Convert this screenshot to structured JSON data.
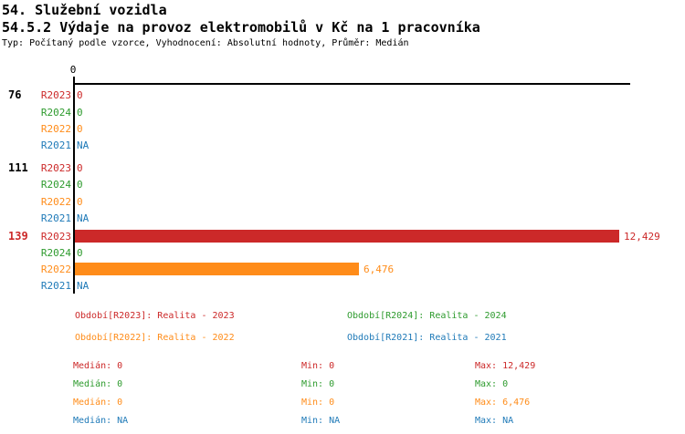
{
  "header": {
    "title_line1": "54. Služební vozidla",
    "title_line2": "54.5.2 Výdaje na provoz elektromobilů v Kč na 1 pracovníka",
    "meta": "Typ: Počítaný podle vzorce, Vyhodnocení: Absolutní hodnoty, Průměr: Medián"
  },
  "palette": {
    "R2023": "#cc2929",
    "R2024": "#2e9b2e",
    "R2022": "#ff8c19",
    "R2021": "#1f7ab8",
    "axis": "#000000"
  },
  "chart_data": {
    "type": "bar",
    "orientation": "horizontal",
    "title": "54.5.2 Výdaje na provoz elektromobilů v Kč na 1 pracovníka",
    "xlim": [
      0,
      12429
    ],
    "axis_tick_label": "0",
    "categories": [
      "76",
      "111",
      "139"
    ],
    "series_order": [
      "R2023",
      "R2024",
      "R2022",
      "R2021"
    ],
    "groups": [
      {
        "label": "76",
        "label_color": "#000000",
        "rows": [
          {
            "series": "R2023",
            "value": 0,
            "value_label": "0",
            "color": "#cc2929"
          },
          {
            "series": "R2024",
            "value": 0,
            "value_label": "0",
            "color": "#2e9b2e"
          },
          {
            "series": "R2022",
            "value": 0,
            "value_label": "0",
            "color": "#ff8c19"
          },
          {
            "series": "R2021",
            "value": null,
            "value_label": "NA",
            "color": "#1f7ab8"
          }
        ]
      },
      {
        "label": "111",
        "label_color": "#000000",
        "rows": [
          {
            "series": "R2023",
            "value": 0,
            "value_label": "0",
            "color": "#cc2929"
          },
          {
            "series": "R2024",
            "value": 0,
            "value_label": "0",
            "color": "#2e9b2e"
          },
          {
            "series": "R2022",
            "value": 0,
            "value_label": "0",
            "color": "#ff8c19"
          },
          {
            "series": "R2021",
            "value": null,
            "value_label": "NA",
            "color": "#1f7ab8"
          }
        ]
      },
      {
        "label": "139",
        "label_color": "#cc2929",
        "rows": [
          {
            "series": "R2023",
            "value": 12429,
            "value_label": "12,429",
            "color": "#cc2929"
          },
          {
            "series": "R2024",
            "value": 0,
            "value_label": "0",
            "color": "#2e9b2e"
          },
          {
            "series": "R2022",
            "value": 6476,
            "value_label": "6,476",
            "color": "#ff8c19"
          },
          {
            "series": "R2021",
            "value": null,
            "value_label": "NA",
            "color": "#1f7ab8"
          }
        ]
      }
    ]
  },
  "legend": {
    "items": [
      {
        "label": "Období[R2023]: Realita - 2023",
        "color": "#cc2929"
      },
      {
        "label": "Období[R2024]: Realita - 2024",
        "color": "#2e9b2e"
      },
      {
        "label": "Období[R2022]: Realita - 2022",
        "color": "#ff8c19"
      },
      {
        "label": "Období[R2021]: Realita - 2021",
        "color": "#1f7ab8"
      }
    ]
  },
  "stats": {
    "rows": [
      {
        "median": "Medián: 0",
        "min": "Min: 0",
        "max": "Max: 12,429",
        "color": "#cc2929"
      },
      {
        "median": "Medián: 0",
        "min": "Min: 0",
        "max": "Max: 0",
        "color": "#2e9b2e"
      },
      {
        "median": "Medián: 0",
        "min": "Min: 0",
        "max": "Max: 6,476",
        "color": "#ff8c19"
      },
      {
        "median": "Medián: NA",
        "min": "Min: NA",
        "max": "Max: NA",
        "color": "#1f7ab8"
      }
    ]
  }
}
